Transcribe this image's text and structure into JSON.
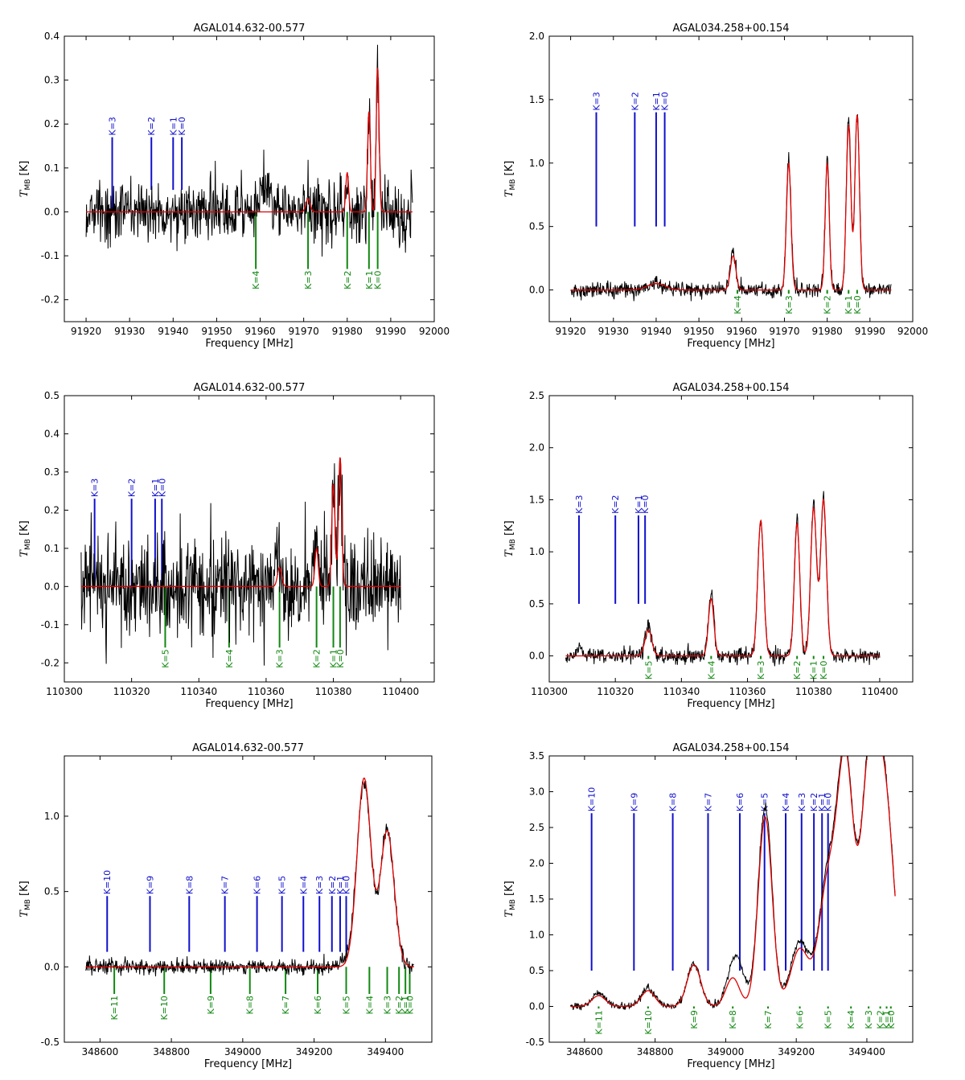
{
  "figure": {
    "colors": {
      "data": "#000000",
      "fit": "#e00000",
      "blue": "#1010cc",
      "green": "#118811"
    },
    "xlabel": "Frequency [MHz]",
    "ylabel_main": "T",
    "ylabel_sub": "MB",
    "ylabel_unit": " [K]"
  },
  "chart_data": [
    {
      "type": "line",
      "title": "AGAL014.632-00.577",
      "xlabel": "Frequency [MHz]",
      "ylabel": "T_MB [K]",
      "xlim": [
        91915,
        92000
      ],
      "ylim": [
        -0.25,
        0.4
      ],
      "xticks": [
        91920,
        91930,
        91940,
        91950,
        91960,
        91970,
        91980,
        91990,
        92000
      ],
      "yticks": [
        -0.2,
        -0.1,
        0.0,
        0.1,
        0.2,
        0.3,
        0.4
      ],
      "noise": 0.035,
      "data_range": [
        91920,
        91995
      ],
      "peaks": [
        {
          "x": 91980,
          "h": 0.09,
          "w": 0.6
        },
        {
          "x": 91985,
          "h": 0.22,
          "w": 0.6
        },
        {
          "x": 91987,
          "h": 0.34,
          "w": 0.6
        },
        {
          "x": 91971,
          "h": 0.03,
          "w": 1.0
        },
        {
          "x": 91961,
          "h": 0.06,
          "w": 2.5
        }
      ],
      "fit_peaks": [
        {
          "x": 91971,
          "h": 0.03,
          "w": 0.9
        },
        {
          "x": 91980,
          "h": 0.09,
          "w": 0.6
        },
        {
          "x": 91985,
          "h": 0.23,
          "w": 0.6
        },
        {
          "x": 91987,
          "h": 0.33,
          "w": 0.6
        }
      ],
      "blue_lines": [
        {
          "label": "K=3",
          "x": 91926,
          "y0": 0.0,
          "y1": 0.17
        },
        {
          "label": "K=2",
          "x": 91935,
          "y0": 0.05,
          "y1": 0.17
        },
        {
          "label": "K=1",
          "x": 91940,
          "y0": 0.05,
          "y1": 0.17
        },
        {
          "label": "K=0",
          "x": 91942,
          "y0": 0.05,
          "y1": 0.17
        }
      ],
      "green_lines": [
        {
          "label": "K=4",
          "x": 91959,
          "y0": 0.0,
          "y1": -0.13
        },
        {
          "label": "K=3",
          "x": 91971,
          "y0": 0.0,
          "y1": -0.13
        },
        {
          "label": "K=2",
          "x": 91980,
          "y0": 0.0,
          "y1": -0.13
        },
        {
          "label": "K=1",
          "x": 91985,
          "y0": 0.0,
          "y1": -0.13
        },
        {
          "label": "K=0",
          "x": 91987,
          "y0": 0.0,
          "y1": -0.13
        }
      ]
    },
    {
      "type": "line",
      "title": "AGAL034.258+00.154",
      "xlabel": "Frequency [MHz]",
      "ylabel": "T_MB [K]",
      "xlim": [
        91915,
        92000
      ],
      "ylim": [
        -0.25,
        2.0
      ],
      "xticks": [
        91920,
        91930,
        91940,
        91950,
        91960,
        91970,
        91980,
        91990,
        92000
      ],
      "yticks": [
        0.0,
        0.5,
        1.0,
        1.5,
        2.0
      ],
      "noise": 0.03,
      "data_range": [
        91920,
        91995
      ],
      "peaks": [
        {
          "x": 91958,
          "h": 0.3,
          "w": 1.2
        },
        {
          "x": 91971,
          "h": 1.05,
          "w": 1.0
        },
        {
          "x": 91980,
          "h": 1.05,
          "w": 0.9
        },
        {
          "x": 91985,
          "h": 1.35,
          "w": 1.0
        },
        {
          "x": 91987,
          "h": 1.4,
          "w": 1.0
        },
        {
          "x": 91940,
          "h": 0.05,
          "w": 4.0
        }
      ],
      "fit_peaks": [
        {
          "x": 91940,
          "h": 0.05,
          "w": 4.0
        },
        {
          "x": 91958,
          "h": 0.27,
          "w": 1.2
        },
        {
          "x": 91971,
          "h": 1.0,
          "w": 1.0
        },
        {
          "x": 91980,
          "h": 1.0,
          "w": 0.9
        },
        {
          "x": 91985,
          "h": 1.3,
          "w": 1.0
        },
        {
          "x": 91987,
          "h": 1.38,
          "w": 1.0
        }
      ],
      "blue_lines": [
        {
          "label": "K=3",
          "x": 91926,
          "y0": 0.5,
          "y1": 1.4
        },
        {
          "label": "K=2",
          "x": 91935,
          "y0": 0.5,
          "y1": 1.4
        },
        {
          "label": "K=1",
          "x": 91940,
          "y0": 0.5,
          "y1": 1.4
        },
        {
          "label": "K=0",
          "x": 91942,
          "y0": 0.5,
          "y1": 1.4
        }
      ],
      "green_lines": [
        {
          "label": "K=4",
          "x": 91959,
          "y0": 0.0,
          "y1": -0.03
        },
        {
          "label": "K=3",
          "x": 91971,
          "y0": 0.0,
          "y1": -0.03
        },
        {
          "label": "K=2",
          "x": 91980,
          "y0": 0.0,
          "y1": -0.03
        },
        {
          "label": "K=1",
          "x": 91985,
          "y0": 0.0,
          "y1": -0.03
        },
        {
          "label": "K=0",
          "x": 91987,
          "y0": 0.0,
          "y1": -0.03
        }
      ]
    },
    {
      "type": "line",
      "title": "AGAL014.632-00.577",
      "xlabel": "Frequency [MHz]",
      "ylabel": "T_MB [K]",
      "xlim": [
        110300,
        110410
      ],
      "ylim": [
        -0.25,
        0.5
      ],
      "xticks": [
        110300,
        110320,
        110340,
        110360,
        110380,
        110400
      ],
      "yticks": [
        -0.2,
        -0.1,
        0.0,
        0.1,
        0.2,
        0.3,
        0.4,
        0.5
      ],
      "noise": 0.065,
      "data_range": [
        110305,
        110400
      ],
      "peaks": [
        {
          "x": 110375,
          "h": 0.1,
          "w": 0.7
        },
        {
          "x": 110380,
          "h": 0.28,
          "w": 0.7
        },
        {
          "x": 110382,
          "h": 0.35,
          "w": 0.7
        },
        {
          "x": 110364,
          "h": 0.05,
          "w": 1.0
        }
      ],
      "fit_peaks": [
        {
          "x": 110364,
          "h": 0.05,
          "w": 0.9
        },
        {
          "x": 110375,
          "h": 0.1,
          "w": 0.7
        },
        {
          "x": 110380,
          "h": 0.27,
          "w": 0.7
        },
        {
          "x": 110382,
          "h": 0.34,
          "w": 0.7
        }
      ],
      "blue_lines": [
        {
          "label": "K=3",
          "x": 110309,
          "y0": 0.0,
          "y1": 0.23
        },
        {
          "label": "K=2",
          "x": 110320,
          "y0": 0.0,
          "y1": 0.23
        },
        {
          "label": "K=1",
          "x": 110327,
          "y0": 0.0,
          "y1": 0.23
        },
        {
          "label": "K=0",
          "x": 110329,
          "y0": 0.0,
          "y1": 0.23
        }
      ],
      "green_lines": [
        {
          "label": "K=5",
          "x": 110330,
          "y0": 0.0,
          "y1": -0.16
        },
        {
          "label": "K=4",
          "x": 110349,
          "y0": 0.0,
          "y1": -0.16
        },
        {
          "label": "K=3",
          "x": 110364,
          "y0": 0.0,
          "y1": -0.16
        },
        {
          "label": "K=2",
          "x": 110375,
          "y0": 0.0,
          "y1": -0.16
        },
        {
          "label": "K=1",
          "x": 110380,
          "y0": 0.0,
          "y1": -0.16
        },
        {
          "label": "K=0",
          "x": 110382,
          "y0": 0.0,
          "y1": -0.16
        }
      ]
    },
    {
      "type": "line",
      "title": "AGAL034.258+00.154",
      "xlabel": "Frequency [MHz]",
      "ylabel": "T_MB [K]",
      "xlim": [
        110300,
        110410
      ],
      "ylim": [
        -0.25,
        2.5
      ],
      "xticks": [
        110300,
        110320,
        110340,
        110360,
        110380,
        110400
      ],
      "yticks": [
        0.0,
        0.5,
        1.0,
        1.5,
        2.0,
        2.5
      ],
      "noise": 0.035,
      "data_range": [
        110305,
        110400
      ],
      "peaks": [
        {
          "x": 110330,
          "h": 0.27,
          "w": 1.5
        },
        {
          "x": 110349,
          "h": 0.6,
          "w": 1.2
        },
        {
          "x": 110364,
          "h": 1.3,
          "w": 1.3
        },
        {
          "x": 110375,
          "h": 1.3,
          "w": 1.2
        },
        {
          "x": 110380,
          "h": 1.45,
          "w": 1.3
        },
        {
          "x": 110383,
          "h": 1.5,
          "w": 1.3
        },
        {
          "x": 110309,
          "h": 0.08,
          "w": 1.0
        }
      ],
      "fit_peaks": [
        {
          "x": 110330,
          "h": 0.25,
          "w": 1.5
        },
        {
          "x": 110349,
          "h": 0.55,
          "w": 1.2
        },
        {
          "x": 110364,
          "h": 1.3,
          "w": 1.3
        },
        {
          "x": 110375,
          "h": 1.27,
          "w": 1.2
        },
        {
          "x": 110380,
          "h": 1.42,
          "w": 1.3
        },
        {
          "x": 110383,
          "h": 1.5,
          "w": 1.3
        }
      ],
      "blue_lines": [
        {
          "label": "K=3",
          "x": 110309,
          "y0": 0.5,
          "y1": 1.35
        },
        {
          "label": "K=2",
          "x": 110320,
          "y0": 0.5,
          "y1": 1.35
        },
        {
          "label": "K=1",
          "x": 110327,
          "y0": 0.5,
          "y1": 1.35
        },
        {
          "label": "K=0",
          "x": 110329,
          "y0": 0.5,
          "y1": 1.35
        }
      ],
      "green_lines": [
        {
          "label": "K=5",
          "x": 110330,
          "y0": 0.0,
          "y1": -0.03
        },
        {
          "label": "K=4",
          "x": 110349,
          "y0": 0.0,
          "y1": -0.03
        },
        {
          "label": "K=3",
          "x": 110364,
          "y0": 0.0,
          "y1": -0.03
        },
        {
          "label": "K=2",
          "x": 110375,
          "y0": 0.0,
          "y1": -0.03
        },
        {
          "label": "K=1",
          "x": 110380,
          "y0": 0.0,
          "y1": -0.03
        },
        {
          "label": "K=0",
          "x": 110383,
          "y0": 0.0,
          "y1": -0.03
        }
      ]
    },
    {
      "type": "line",
      "title": "AGAL014.632-00.577",
      "xlabel": "Frequency [MHz]",
      "ylabel": "T_MB [K]",
      "xlim": [
        348500,
        349530
      ],
      "ylim": [
        -0.5,
        1.4
      ],
      "xticks": [
        348600,
        348800,
        349000,
        349200,
        349400
      ],
      "yticks": [
        -0.5,
        0.0,
        0.5,
        1.0
      ],
      "noise": 0.025,
      "data_range": [
        348560,
        349480
      ],
      "peaks": [
        {
          "x": 349340,
          "h": 1.22,
          "w": 3
        },
        {
          "x": 349405,
          "h": 0.9,
          "w": 3
        },
        {
          "x": 349300,
          "h": 0.05,
          "w": 4
        }
      ],
      "fit_peaks": [
        {
          "x": 349340,
          "h": 1.25,
          "w": 3
        },
        {
          "x": 349405,
          "h": 0.9,
          "w": 3
        }
      ],
      "blue_lines": [
        {
          "label": "K=10",
          "x": 348620,
          "y0": 0.1,
          "y1": 0.47
        },
        {
          "label": "K=9",
          "x": 348740,
          "y0": 0.1,
          "y1": 0.47
        },
        {
          "label": "K=8",
          "x": 348850,
          "y0": 0.1,
          "y1": 0.47
        },
        {
          "label": "K=7",
          "x": 348950,
          "y0": 0.1,
          "y1": 0.47
        },
        {
          "label": "K=6",
          "x": 349040,
          "y0": 0.1,
          "y1": 0.47
        },
        {
          "label": "K=5",
          "x": 349110,
          "y0": 0.1,
          "y1": 0.47
        },
        {
          "label": "K=4",
          "x": 349170,
          "y0": 0.1,
          "y1": 0.47
        },
        {
          "label": "K=3",
          "x": 349215,
          "y0": 0.1,
          "y1": 0.47
        },
        {
          "label": "K=2",
          "x": 349250,
          "y0": 0.1,
          "y1": 0.47
        },
        {
          "label": "K=1",
          "x": 349273,
          "y0": 0.1,
          "y1": 0.47
        },
        {
          "label": "K=0",
          "x": 349290,
          "y0": 0.1,
          "y1": 0.47
        }
      ],
      "green_lines": [
        {
          "label": "K=11",
          "x": 348640,
          "y0": 0.0,
          "y1": -0.18
        },
        {
          "label": "K=10",
          "x": 348780,
          "y0": 0.0,
          "y1": -0.18
        },
        {
          "label": "K=9",
          "x": 348910,
          "y0": 0.0,
          "y1": -0.18
        },
        {
          "label": "K=8",
          "x": 349020,
          "y0": 0.0,
          "y1": -0.18
        },
        {
          "label": "K=7",
          "x": 349120,
          "y0": 0.0,
          "y1": -0.18
        },
        {
          "label": "K=6",
          "x": 349210,
          "y0": 0.0,
          "y1": -0.18
        },
        {
          "label": "K=5",
          "x": 349290,
          "y0": 0.0,
          "y1": -0.18
        },
        {
          "label": "K=4",
          "x": 349355,
          "y0": 0.0,
          "y1": -0.18
        },
        {
          "label": "K=3",
          "x": 349405,
          "y0": 0.0,
          "y1": -0.18
        },
        {
          "label": "K=2",
          "x": 349438,
          "y0": 0.0,
          "y1": -0.18
        },
        {
          "label": "K=1",
          "x": 349456,
          "y0": 0.0,
          "y1": -0.18
        },
        {
          "label": "K=0",
          "x": 349468,
          "y0": 0.0,
          "y1": -0.18
        }
      ]
    },
    {
      "type": "line",
      "title": "AGAL034.258+00.154",
      "xlabel": "Frequency [MHz]",
      "ylabel": "T_MB [K]",
      "xlim": [
        348500,
        349530
      ],
      "ylim": [
        -0.5,
        3.5
      ],
      "xticks": [
        348600,
        348800,
        349000,
        349200,
        349400
      ],
      "yticks": [
        -0.5,
        0.0,
        0.5,
        1.0,
        1.5,
        2.0,
        2.5,
        3.0,
        3.5
      ],
      "noise": 0.025,
      "data_range": [
        348560,
        349480
      ],
      "peaks": [
        {
          "x": 348640,
          "h": 0.18,
          "w": 3
        },
        {
          "x": 348780,
          "h": 0.25,
          "w": 3
        },
        {
          "x": 348910,
          "h": 0.6,
          "w": 3
        },
        {
          "x": 349020,
          "h": 0.45,
          "w": 3
        },
        {
          "x": 349040,
          "h": 0.35,
          "w": 3
        },
        {
          "x": 349110,
          "h": 2.3,
          "w": 3
        },
        {
          "x": 349120,
          "h": 0.55,
          "w": 3
        },
        {
          "x": 349210,
          "h": 0.9,
          "w": 4
        },
        {
          "x": 349290,
          "h": 1.8,
          "w": 4
        },
        {
          "x": 349340,
          "h": 3.35,
          "w": 3.5
        },
        {
          "x": 349405,
          "h": 2.95,
          "w": 3.5
        },
        {
          "x": 349440,
          "h": 1.3,
          "w": 4
        },
        {
          "x": 349455,
          "h": 1.85,
          "w": 4
        }
      ],
      "fit_peaks": [
        {
          "x": 348640,
          "h": 0.15,
          "w": 3
        },
        {
          "x": 348780,
          "h": 0.22,
          "w": 3
        },
        {
          "x": 348910,
          "h": 0.58,
          "w": 3
        },
        {
          "x": 349020,
          "h": 0.4,
          "w": 3
        },
        {
          "x": 349110,
          "h": 2.2,
          "w": 3
        },
        {
          "x": 349120,
          "h": 0.5,
          "w": 3
        },
        {
          "x": 349210,
          "h": 0.8,
          "w": 4
        },
        {
          "x": 349290,
          "h": 1.7,
          "w": 4
        },
        {
          "x": 349340,
          "h": 3.3,
          "w": 3.5
        },
        {
          "x": 349405,
          "h": 2.9,
          "w": 3.5
        },
        {
          "x": 349440,
          "h": 1.25,
          "w": 4
        },
        {
          "x": 349455,
          "h": 1.85,
          "w": 4
        }
      ],
      "blue_lines": [
        {
          "label": "K=10",
          "x": 348620,
          "y0": 0.5,
          "y1": 2.7
        },
        {
          "label": "K=9",
          "x": 348740,
          "y0": 0.5,
          "y1": 2.7
        },
        {
          "label": "K=8",
          "x": 348850,
          "y0": 0.5,
          "y1": 2.7
        },
        {
          "label": "K=7",
          "x": 348950,
          "y0": 0.5,
          "y1": 2.7
        },
        {
          "label": "K=6",
          "x": 349040,
          "y0": 0.5,
          "y1": 2.7
        },
        {
          "label": "K=5",
          "x": 349110,
          "y0": 0.5,
          "y1": 2.7
        },
        {
          "label": "K=4",
          "x": 349170,
          "y0": 0.5,
          "y1": 2.7
        },
        {
          "label": "K=3",
          "x": 349215,
          "y0": 0.5,
          "y1": 2.7
        },
        {
          "label": "K=2",
          "x": 349250,
          "y0": 0.5,
          "y1": 2.7
        },
        {
          "label": "K=1",
          "x": 349273,
          "y0": 0.5,
          "y1": 2.7
        },
        {
          "label": "K=0",
          "x": 349290,
          "y0": 0.5,
          "y1": 2.7
        }
      ],
      "green_lines": [
        {
          "label": "K=11",
          "x": 348640,
          "y0": 0.0,
          "y1": -0.03
        },
        {
          "label": "K=10",
          "x": 348780,
          "y0": 0.0,
          "y1": -0.03
        },
        {
          "label": "K=9",
          "x": 348910,
          "y0": 0.0,
          "y1": -0.03
        },
        {
          "label": "K=8",
          "x": 349020,
          "y0": 0.0,
          "y1": -0.03
        },
        {
          "label": "K=7",
          "x": 349120,
          "y0": 0.0,
          "y1": -0.03
        },
        {
          "label": "K=6",
          "x": 349210,
          "y0": 0.0,
          "y1": -0.03
        },
        {
          "label": "K=5",
          "x": 349290,
          "y0": 0.0,
          "y1": -0.03
        },
        {
          "label": "K=4",
          "x": 349355,
          "y0": 0.0,
          "y1": -0.03
        },
        {
          "label": "K=3",
          "x": 349405,
          "y0": 0.0,
          "y1": -0.03
        },
        {
          "label": "K=2",
          "x": 349438,
          "y0": 0.0,
          "y1": -0.03
        },
        {
          "label": "K=1",
          "x": 349456,
          "y0": 0.0,
          "y1": -0.03
        },
        {
          "label": "K=0",
          "x": 349468,
          "y0": 0.0,
          "y1": -0.03
        }
      ]
    }
  ]
}
